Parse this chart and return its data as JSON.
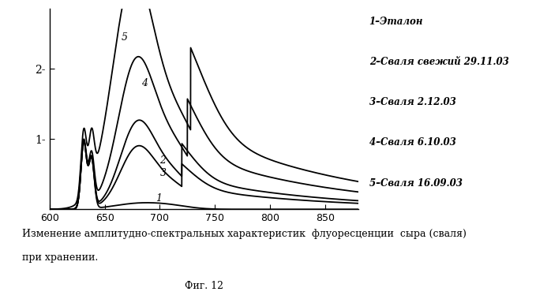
{
  "xlim": [
    600,
    880
  ],
  "ylim": [
    0,
    2.85
  ],
  "xticks": [
    600,
    650,
    700,
    750,
    800,
    850
  ],
  "yticks": [
    1.0,
    2.0
  ],
  "background_color": "#ffffff",
  "line_color": "#000000",
  "legend_entries": [
    "1–Эталон",
    "2–Сваля свежий 29.11.03",
    "3–Сваля 2.12.03",
    "4–Сваля 6.10.03",
    "5–Сваля 16.09.03"
  ],
  "caption_line1": "Изменение амплитудно-спектральных характеристик  флуоресценции  сыра (сваля)",
  "caption_line2": "при хранении.",
  "fig_label": "Фиг. 12"
}
